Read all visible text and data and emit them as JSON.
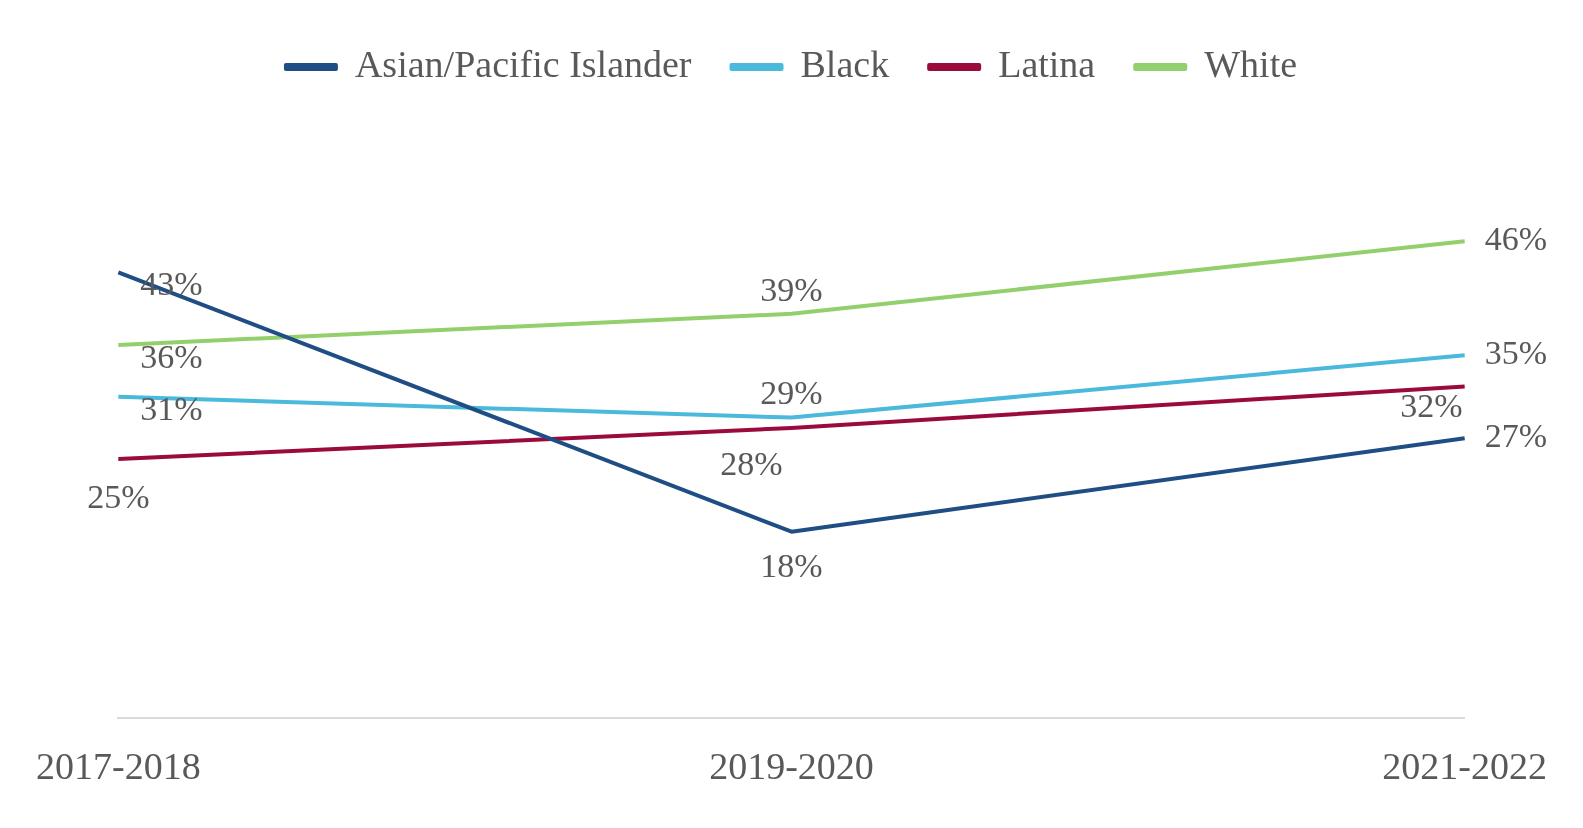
{
  "chart_data": {
    "type": "line",
    "categories": [
      "2017-2018",
      "2019-2020",
      "2021-2022"
    ],
    "series": [
      {
        "name": "Asian/Pacific Islander",
        "color": "#1f4e84",
        "values": [
          43,
          18,
          27
        ],
        "value_labels": [
          "43%",
          "18%",
          "27%"
        ]
      },
      {
        "name": "Black",
        "color": "#4bb9dc",
        "values": [
          31,
          29,
          35
        ],
        "value_labels": [
          "31%",
          "29%",
          "35%"
        ]
      },
      {
        "name": "Latina",
        "color": "#9b0a3c",
        "values": [
          25,
          28,
          32
        ],
        "value_labels": [
          "25%",
          "28%",
          "32%"
        ]
      },
      {
        "name": "White",
        "color": "#94cf6e",
        "values": [
          36,
          39,
          46
        ],
        "value_labels": [
          "36%",
          "39%",
          "46%"
        ]
      }
    ],
    "legend": "top",
    "grid": false,
    "marker": "none",
    "line_style": "solid"
  }
}
